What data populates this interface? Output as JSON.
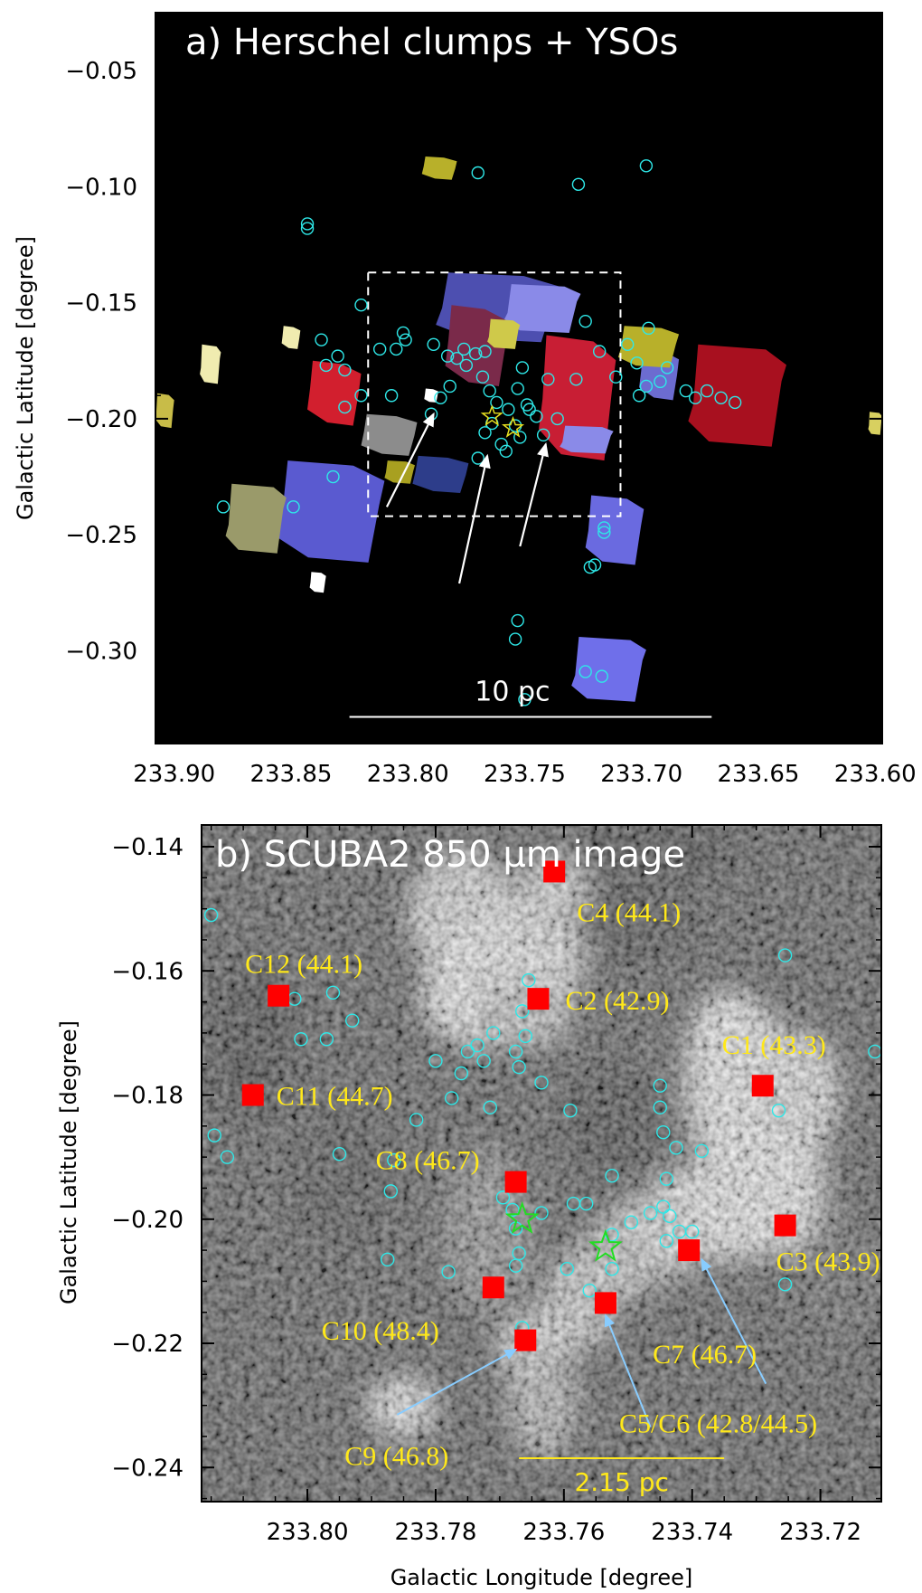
{
  "figure": {
    "panel_a": {
      "title": "a) Herschel clumps + YSOs",
      "ylabel": "Galactic Latitude [degree]",
      "xlabel": "",
      "scale_bar_label": "10 pc"
    },
    "panel_b": {
      "title": "b) SCUBA2 850 μm image",
      "ylabel": "Galactic Latitude [degree]",
      "xlabel": "Galactic Longitude [degree]",
      "scale_bar_label": "2.15 pc"
    }
  },
  "colors": {
    "background_a": "#000000",
    "yso_circle": "#2ee8e8",
    "core_marker": "#ff0000",
    "core_label": "#ffe81a",
    "star": "#22dd22",
    "arrow_a": "#ffffff",
    "arrow_b": "#88ccff"
  },
  "chart_data": [
    {
      "type": "scatter",
      "title": "a) Herschel clumps + YSOs",
      "xlabel": "",
      "ylabel": "Galactic Latitude [degree]",
      "xlim": [
        233.908,
        233.597
      ],
      "ylim": [
        -0.34,
        -0.025
      ],
      "xticks": [
        "233.90",
        "233.85",
        "233.80",
        "233.75",
        "233.70",
        "233.65",
        "233.60"
      ],
      "yticks": [
        "-0.05",
        "-0.10",
        "-0.15",
        "-0.20",
        "-0.25",
        "-0.30"
      ],
      "dashed_box": {
        "l": [
          233.817,
          233.709
        ],
        "b": [
          -0.242,
          -0.137
        ]
      },
      "scale_bar": {
        "label": "10 pc",
        "l": [
          233.825,
          233.67
        ],
        "b": -0.3285
      },
      "clumps": [
        {
          "color": "#b8b02a",
          "l": [
            233.794,
            233.779
          ],
          "b": [
            -0.087,
            -0.097
          ]
        },
        {
          "color": "#4d4fb0",
          "l": [
            233.788,
            233.735
          ],
          "b": [
            -0.137,
            -0.167
          ]
        },
        {
          "color": "#8a8ae8",
          "l": [
            233.759,
            233.726
          ],
          "b": [
            -0.142,
            -0.163
          ]
        },
        {
          "color": "#7a2a4a",
          "l": [
            233.784,
            233.757
          ],
          "b": [
            -0.151,
            -0.186
          ]
        },
        {
          "color": "#c81e34",
          "l": [
            233.744,
            233.711
          ],
          "b": [
            -0.164,
            -0.218
          ]
        },
        {
          "color": "#a8101f",
          "l": [
            233.68,
            233.638
          ],
          "b": [
            -0.168,
            -0.212
          ]
        },
        {
          "color": "#d21f2e",
          "l": [
            233.843,
            233.82
          ],
          "b": [
            -0.175,
            -0.203
          ]
        },
        {
          "color": "#5a5ad0",
          "l": [
            233.856,
            233.81
          ],
          "b": [
            -0.218,
            -0.262
          ]
        },
        {
          "color": "#9a9a6a",
          "l": [
            233.878,
            233.852
          ],
          "b": [
            -0.228,
            -0.258
          ]
        },
        {
          "color": "#2d3d8a",
          "l": [
            233.798,
            233.774
          ],
          "b": [
            -0.216,
            -0.232
          ]
        },
        {
          "color": "#6a6ae0",
          "l": [
            233.724,
            233.699
          ],
          "b": [
            -0.233,
            -0.263
          ]
        },
        {
          "color": "#6f6fea",
          "l": [
            233.73,
            233.698
          ],
          "b": [
            -0.294,
            -0.322
          ]
        },
        {
          "color": "#6c6cd0",
          "l": [
            233.701,
            233.684
          ],
          "b": [
            -0.17,
            -0.192
          ]
        },
        {
          "color": "#b8b02a",
          "l": [
            233.71,
            233.684
          ],
          "b": [
            -0.16,
            -0.178
          ]
        },
        {
          "color": "#cfc94a",
          "l": [
            233.766,
            233.752
          ],
          "b": [
            -0.157,
            -0.17
          ]
        },
        {
          "color": "#8c8c8c",
          "l": [
            233.82,
            233.796
          ],
          "b": [
            -0.198,
            -0.216
          ]
        },
        {
          "color": "#c8bc48",
          "l": [
            233.908,
            233.9
          ],
          "b": [
            -0.189,
            -0.204
          ]
        },
        {
          "color": "#f0ecb0",
          "l": [
            233.889,
            233.88
          ],
          "b": [
            -0.168,
            -0.185
          ]
        },
        {
          "color": "#f0ecb0",
          "l": [
            233.854,
            233.846
          ],
          "b": [
            -0.16,
            -0.17
          ]
        },
        {
          "color": "#ffffff",
          "l": [
            233.842,
            233.835
          ],
          "b": [
            -0.266,
            -0.275
          ]
        },
        {
          "color": "#d8d060",
          "l": [
            233.603,
            233.597
          ],
          "b": [
            -0.197,
            -0.207
          ]
        },
        {
          "color": "#ffffff",
          "l": [
            233.793,
            233.787
          ],
          "b": [
            -0.187,
            -0.193
          ]
        },
        {
          "color": "#a8a020",
          "l": [
            233.81,
            233.797
          ],
          "b": [
            -0.218,
            -0.228
          ]
        },
        {
          "color": "#8a8ae8",
          "l": [
            233.735,
            233.712
          ],
          "b": [
            -0.203,
            -0.215
          ]
        }
      ],
      "ysos": [
        [
          233.77,
          -0.094
        ],
        [
          233.727,
          -0.099
        ],
        [
          233.698,
          -0.091
        ],
        [
          233.843,
          -0.116
        ],
        [
          233.843,
          -0.118
        ],
        [
          233.837,
          -0.166
        ],
        [
          233.835,
          -0.177
        ],
        [
          233.83,
          -0.173
        ],
        [
          233.827,
          -0.179
        ],
        [
          233.82,
          -0.151
        ],
        [
          233.812,
          -0.17
        ],
        [
          233.805,
          -0.17
        ],
        [
          233.802,
          -0.163
        ],
        [
          233.801,
          -0.166
        ],
        [
          233.789,
          -0.168
        ],
        [
          233.783,
          -0.173
        ],
        [
          233.779,
          -0.174
        ],
        [
          233.776,
          -0.17
        ],
        [
          233.775,
          -0.177
        ],
        [
          233.771,
          -0.172
        ],
        [
          233.767,
          -0.171
        ],
        [
          233.768,
          -0.182
        ],
        [
          233.765,
          -0.188
        ],
        [
          233.762,
          -0.193
        ],
        [
          233.757,
          -0.196
        ],
        [
          233.753,
          -0.187
        ],
        [
          233.751,
          -0.178
        ],
        [
          233.748,
          -0.196
        ],
        [
          233.745,
          -0.199
        ],
        [
          233.74,
          -0.183
        ],
        [
          233.736,
          -0.2
        ],
        [
          233.728,
          -0.183
        ],
        [
          233.724,
          -0.158
        ],
        [
          233.718,
          -0.171
        ],
        [
          233.711,
          -0.182
        ],
        [
          233.706,
          -0.168
        ],
        [
          233.702,
          -0.176
        ],
        [
          233.701,
          -0.19
        ],
        [
          233.698,
          -0.186
        ],
        [
          233.697,
          -0.161
        ],
        [
          233.692,
          -0.184
        ],
        [
          233.689,
          -0.178
        ],
        [
          233.681,
          -0.188
        ],
        [
          233.677,
          -0.191
        ],
        [
          233.672,
          -0.188
        ],
        [
          233.666,
          -0.191
        ],
        [
          233.66,
          -0.193
        ],
        [
          233.79,
          -0.198
        ],
        [
          233.786,
          -0.191
        ],
        [
          233.782,
          -0.186
        ],
        [
          233.767,
          -0.206
        ],
        [
          233.764,
          -0.202
        ],
        [
          233.76,
          -0.211
        ],
        [
          233.754,
          -0.203
        ],
        [
          233.752,
          -0.208
        ],
        [
          233.749,
          -0.194
        ],
        [
          233.77,
          -0.217
        ],
        [
          233.758,
          -0.214
        ],
        [
          233.742,
          -0.207
        ],
        [
          233.827,
          -0.195
        ],
        [
          233.82,
          -0.19
        ],
        [
          233.807,
          -0.19
        ],
        [
          233.849,
          -0.238
        ],
        [
          233.879,
          -0.238
        ],
        [
          233.832,
          -0.225
        ],
        [
          233.722,
          -0.264
        ],
        [
          233.72,
          -0.263
        ],
        [
          233.716,
          -0.247
        ],
        [
          233.716,
          -0.249
        ],
        [
          233.753,
          -0.287
        ],
        [
          233.754,
          -0.295
        ],
        [
          233.724,
          -0.309
        ],
        [
          233.717,
          -0.311
        ],
        [
          233.75,
          -0.321
        ]
      ],
      "stars": [
        [
          233.764,
          -0.199
        ],
        [
          233.755,
          -0.204
        ]
      ],
      "arrows": [
        {
          "from": [
            233.809,
            -0.238
          ],
          "to": [
            233.789,
            -0.198
          ]
        },
        {
          "from": [
            233.778,
            -0.271
          ],
          "to": [
            233.766,
            -0.216
          ]
        },
        {
          "from": [
            233.752,
            -0.255
          ],
          "to": [
            233.741,
            -0.211
          ]
        }
      ]
    },
    {
      "type": "scatter",
      "title": "b) SCUBA2 850 μm image",
      "xlabel": "Galactic Longitude [degree]",
      "ylabel": "Galactic Latitude [degree]",
      "xlim": [
        233.8165,
        233.7105
      ],
      "ylim": [
        -0.2455,
        -0.1365
      ],
      "xticks": [
        "233.80",
        "233.78",
        "233.76",
        "233.74",
        "233.72"
      ],
      "yticks": [
        "-0.14",
        "-0.16",
        "-0.18",
        "-0.20",
        "-0.22",
        "-0.24"
      ],
      "scale_bar": {
        "label": "2.15 pc",
        "l": [
          233.767,
          233.735
        ],
        "b": -0.2385
      },
      "cores": [
        {
          "label": "C1 (43.3)",
          "l": 233.729,
          "b": -0.1785
        },
        {
          "label": "C2 (42.9)",
          "l": 233.764,
          "b": -0.1645
        },
        {
          "label": "C3 (43.9)",
          "l": 233.7255,
          "b": -0.201
        },
        {
          "label": "C4 (44.1)",
          "l": 233.7615,
          "b": -0.144
        },
        {
          "label": "C5/C6 (42.8/44.5)",
          "l": 233.7535,
          "b": -0.2135
        },
        {
          "label": "C7 (46.7)",
          "l": 233.7405,
          "b": -0.205
        },
        {
          "label": "C8 (46.7)",
          "l": 233.7675,
          "b": -0.194
        },
        {
          "label": "C9 (46.8)",
          "l": 233.766,
          "b": -0.2195
        },
        {
          "label": "C10 (48.4)",
          "l": 233.771,
          "b": -0.211
        },
        {
          "label": "C11 (44.7)",
          "l": 233.8085,
          "b": -0.18
        },
        {
          "label": "C12 (44.1)",
          "l": 233.8045,
          "b": -0.164
        }
      ],
      "ysos": [
        [
          233.815,
          -0.151
        ],
        [
          233.801,
          -0.171
        ],
        [
          233.797,
          -0.171
        ],
        [
          233.793,
          -0.168
        ],
        [
          233.796,
          -0.1635
        ],
        [
          233.802,
          -0.1645
        ],
        [
          233.7655,
          -0.1615
        ],
        [
          233.7665,
          -0.1665
        ],
        [
          233.7675,
          -0.173
        ],
        [
          233.766,
          -0.1705
        ],
        [
          233.767,
          -0.1755
        ],
        [
          233.771,
          -0.17
        ],
        [
          233.7735,
          -0.172
        ],
        [
          233.7725,
          -0.1745
        ],
        [
          233.775,
          -0.173
        ],
        [
          233.776,
          -0.1765
        ],
        [
          233.78,
          -0.1745
        ],
        [
          233.7775,
          -0.1805
        ],
        [
          233.7715,
          -0.182
        ],
        [
          233.7635,
          -0.178
        ],
        [
          233.759,
          -0.1825
        ],
        [
          233.745,
          -0.1785
        ],
        [
          233.745,
          -0.182
        ],
        [
          233.7525,
          -0.193
        ],
        [
          233.7445,
          -0.186
        ],
        [
          233.7425,
          -0.1885
        ],
        [
          233.744,
          -0.1935
        ],
        [
          233.7445,
          -0.198
        ],
        [
          233.7465,
          -0.199
        ],
        [
          233.7435,
          -0.1995
        ],
        [
          233.742,
          -0.202
        ],
        [
          233.744,
          -0.2035
        ],
        [
          233.7495,
          -0.2005
        ],
        [
          233.7525,
          -0.208
        ],
        [
          233.74,
          -0.202
        ],
        [
          233.74,
          -0.2055
        ],
        [
          233.7385,
          -0.189
        ],
        [
          233.7265,
          -0.1825
        ],
        [
          233.7255,
          -0.1575
        ],
        [
          233.7115,
          -0.173
        ],
        [
          233.7255,
          -0.2105
        ],
        [
          233.783,
          -0.184
        ],
        [
          233.787,
          -0.1955
        ],
        [
          233.7865,
          -0.1905
        ],
        [
          233.795,
          -0.1895
        ],
        [
          233.8145,
          -0.1865
        ],
        [
          233.8125,
          -0.19
        ],
        [
          233.7695,
          -0.1965
        ],
        [
          233.768,
          -0.1985
        ],
        [
          233.7635,
          -0.199
        ],
        [
          233.7585,
          -0.1975
        ],
        [
          233.7565,
          -0.1975
        ],
        [
          233.7675,
          -0.2015
        ],
        [
          233.767,
          -0.2055
        ],
        [
          233.7675,
          -0.2075
        ],
        [
          233.7595,
          -0.208
        ],
        [
          233.7525,
          -0.2025
        ],
        [
          233.756,
          -0.2115
        ],
        [
          233.7875,
          -0.2065
        ],
        [
          233.778,
          -0.2085
        ],
        [
          233.7665,
          -0.2175
        ]
      ],
      "stars": [
        [
          233.7665,
          -0.2
        ],
        [
          233.7535,
          -0.2045
        ]
      ],
      "arrows": [
        {
          "from": [
            233.786,
            -0.2315
          ],
          "to": [
            233.7675,
            -0.221
          ]
        },
        {
          "from": [
            233.7465,
            -0.2335
          ],
          "to": [
            233.7535,
            -0.2155
          ]
        },
        {
          "from": [
            233.7285,
            -0.2265
          ],
          "to": [
            233.7385,
            -0.2065
          ]
        }
      ]
    }
  ]
}
